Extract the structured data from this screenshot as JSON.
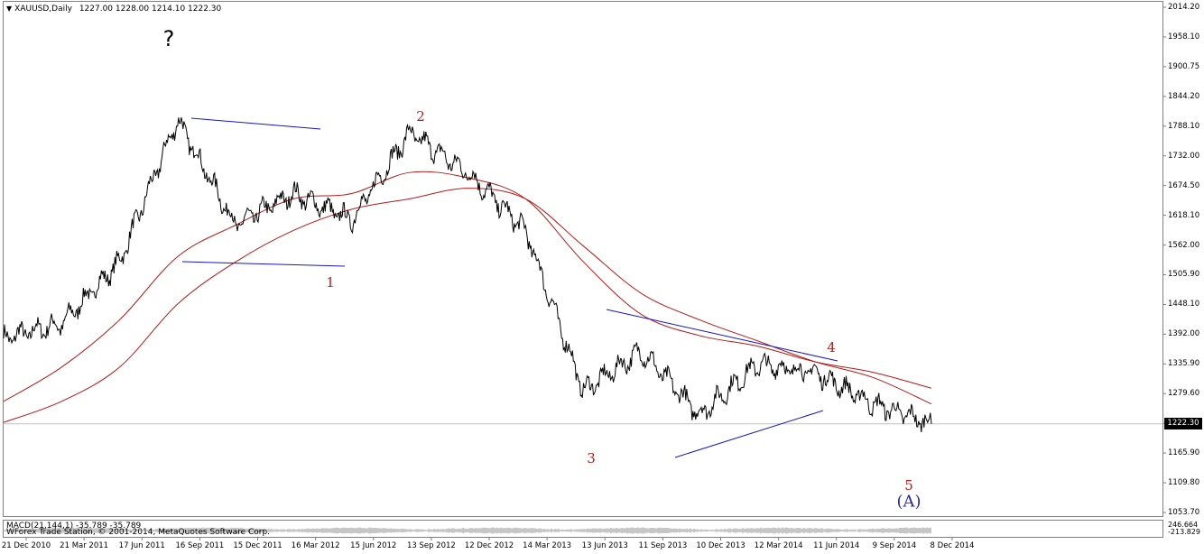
{
  "window": {
    "symbol": "XAUUSD,Daily",
    "ohlc": "1227.00 1228.00 1214.10 1222.30",
    "current_price_label": "1222.30",
    "indicator_label": "MACD(21,144,1) -35.789 -35.789",
    "copyright": "WForex Trade Station, © 2001-2014, MetaQuotes Software Corp."
  },
  "price_axis": {
    "labels": [
      "2014.20",
      "1958.10",
      "1900.75",
      "1844.20",
      "1788.10",
      "1732.00",
      "1674.50",
      "1618.10",
      "1562.00",
      "1505.90",
      "1448.10",
      "1392.00",
      "1335.90",
      "1279.60",
      "1222.30",
      "1165.90",
      "1109.80",
      "1053.70"
    ]
  },
  "indicator_axis": {
    "labels": [
      "246.664",
      "-213.829"
    ]
  },
  "time_axis": {
    "labels": [
      "21 Dec 2010",
      "21 Mar 2011",
      "17 Jun 2011",
      "16 Sep 2011",
      "15 Dec 2011",
      "16 Mar 2012",
      "15 Jun 2012",
      "13 Sep 2012",
      "12 Dec 2012",
      "14 Mar 2013",
      "13 Jun 2013",
      "11 Sep 2013",
      "10 Dec 2013",
      "12 Mar 2014",
      "11 Jun 2014",
      "9 Sep 2014",
      "8 Dec 2014"
    ]
  },
  "annotations": {
    "question_mark": "?",
    "wave_1": "1",
    "wave_2": "2",
    "wave_3": "3",
    "wave_4": "4",
    "wave_5": "5",
    "wave_A": "(A)",
    "wave_color": "#b31b1b",
    "wave_A_color": "#2a2a9a",
    "trendline_color": "#1515c8"
  },
  "chart_data": {
    "type": "line",
    "symbol": "XAUUSD",
    "timeframe": "Daily",
    "ylim": [
      1053.7,
      2014.2
    ],
    "x": [
      "21 Dec 2010",
      "21 Mar 2011",
      "17 Jun 2011",
      "16 Sep 2011",
      "15 Dec 2011",
      "16 Mar 2012",
      "15 Jun 2012",
      "13 Sep 2012",
      "12 Dec 2012",
      "14 Mar 2013",
      "13 Jun 2013",
      "11 Sep 2013",
      "10 Dec 2013",
      "12 Mar 2014",
      "11 Jun 2014",
      "9 Sep 2014",
      "8 Dec 2014"
    ],
    "series": [
      {
        "values": [
          1385,
          1412,
          1530,
          1800,
          1600,
          1660,
          1610,
          1775,
          1700,
          1590,
          1285,
          1360,
          1240,
          1335,
          1320,
          1260,
          1222
        ]
      },
      {
        "values": [
          1265,
          1330,
          1420,
          1540,
          1600,
          1650,
          1660,
          1700,
          1690,
          1650,
          1530,
          1430,
          1390,
          1370,
          1340,
          1320,
          1290
        ]
      },
      {
        "values": [
          1225,
          1265,
          1330,
          1450,
          1530,
          1590,
          1630,
          1650,
          1670,
          1650,
          1560,
          1470,
          1420,
          1380,
          1340,
          1310,
          1260
        ]
      }
    ],
    "price_colors": {
      "price": "#000000",
      "moving_averages": "#b31b1b"
    },
    "grid": false
  }
}
